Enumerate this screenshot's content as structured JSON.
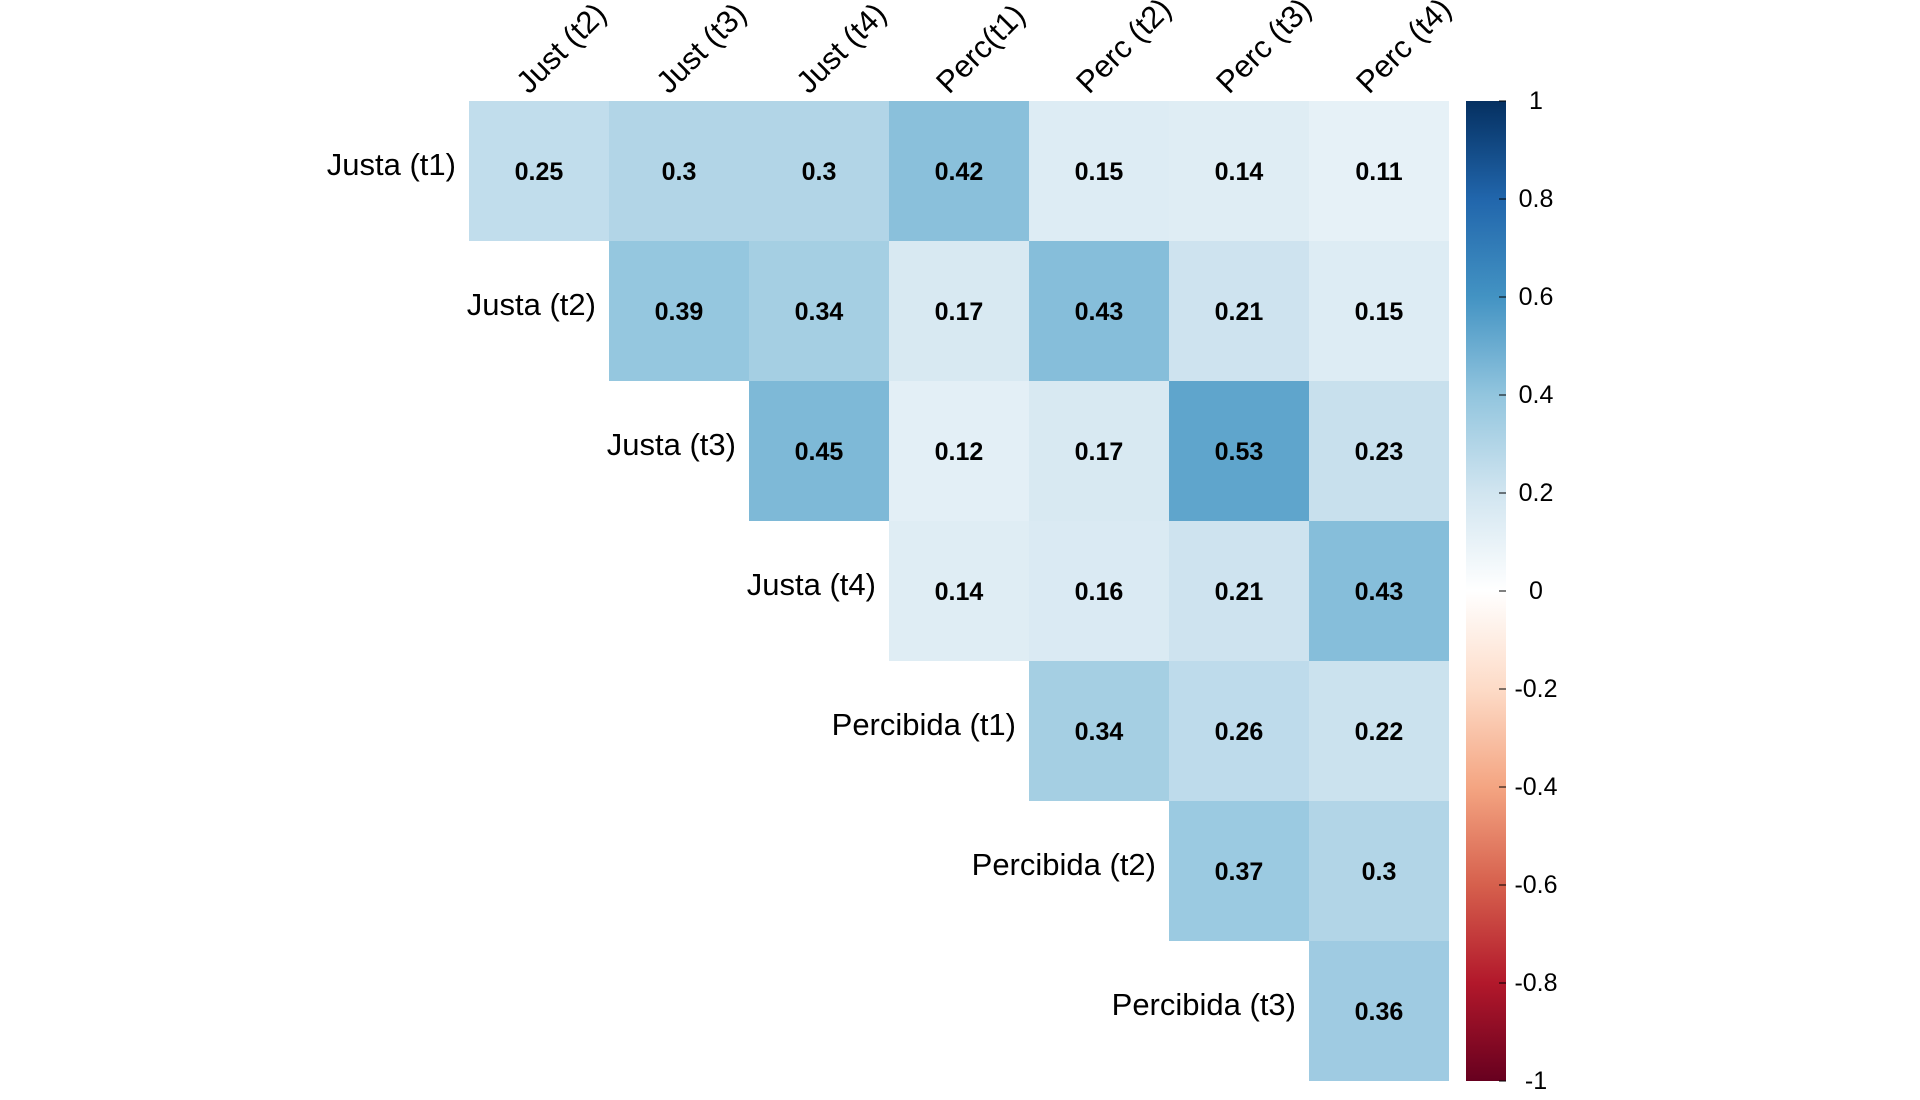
{
  "chart_data": {
    "type": "heatmap",
    "title": "",
    "row_labels": [
      "Justa (t1)",
      "Justa (t2)",
      "Justa (t3)",
      "Justa (t4)",
      "Percibida (t1)",
      "Percibida (t2)",
      "Percibida (t3)"
    ],
    "col_labels": [
      "Just (t2)",
      "Just (t3)",
      "Just (t4)",
      "Perc(t1)",
      "Perc (t2)",
      "Perc (t3)",
      "Perc (t4)"
    ],
    "values": [
      [
        0.25,
        0.3,
        0.3,
        0.42,
        0.15,
        0.14,
        0.11
      ],
      [
        null,
        0.39,
        0.34,
        0.17,
        0.43,
        0.21,
        0.15
      ],
      [
        null,
        null,
        0.45,
        0.12,
        0.17,
        0.53,
        0.23
      ],
      [
        null,
        null,
        null,
        0.14,
        0.16,
        0.21,
        0.43
      ],
      [
        null,
        null,
        null,
        null,
        0.34,
        0.26,
        0.22
      ],
      [
        null,
        null,
        null,
        null,
        null,
        0.37,
        0.3
      ],
      [
        null,
        null,
        null,
        null,
        null,
        null,
        0.36
      ]
    ],
    "colorbar": {
      "range": [
        -1,
        1
      ],
      "ticks": [
        "1",
        "0.8",
        "0.6",
        "0.4",
        "0.2",
        "0",
        "-0.2",
        "-0.4",
        "-0.6",
        "-0.8",
        "-1"
      ],
      "tick_values": [
        1,
        0.8,
        0.6,
        0.4,
        0.2,
        0,
        -0.2,
        -0.4,
        -0.6,
        -0.8,
        -1
      ],
      "colors": [
        "#67001F",
        "#B2182B",
        "#D6604D",
        "#F4A582",
        "#FDDBC7",
        "#FFFFFF",
        "#D1E5F0",
        "#92C5DE",
        "#4393C3",
        "#2166AC",
        "#053061"
      ]
    }
  }
}
